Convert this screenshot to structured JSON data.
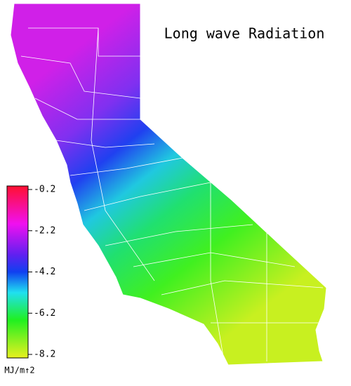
{
  "title": "Long wave Radiation",
  "colorbar": {
    "ticks": [
      -0.2,
      -2.2,
      -4.2,
      -6.2,
      -8.2
    ],
    "unit": "MJ/m↑2"
  }
}
